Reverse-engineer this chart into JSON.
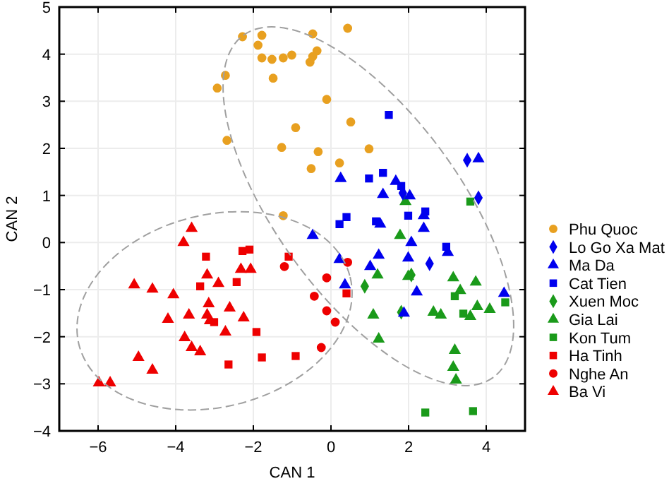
{
  "chart_data": {
    "type": "scatter",
    "xlabel": "CAN 1",
    "ylabel": "CAN 2",
    "xlim": [
      -7,
      5
    ],
    "ylim": [
      -4,
      5
    ],
    "xticks": [
      -6,
      -4,
      -2,
      0,
      2,
      4
    ],
    "yticks": [
      -4,
      -3,
      -2,
      -1,
      0,
      1,
      2,
      3,
      4,
      5
    ],
    "grid": true,
    "legend": "right",
    "series": [
      {
        "name": "Phu Quoc",
        "color": "#e8a020",
        "marker": "circle",
        "x": [
          -2.28,
          -1.78,
          -0.47,
          0.43,
          -1.88,
          -1.78,
          -1.52,
          -1.23,
          -1.01,
          -0.36,
          -0.47,
          -0.54,
          -2.72,
          -2.93,
          -1.49,
          -0.11,
          -0.91,
          0.51,
          -2.68,
          -1.27,
          -0.33,
          0.98,
          -0.51,
          0.22,
          -1.23
        ],
        "values": [
          4.37,
          4.4,
          4.43,
          4.55,
          4.19,
          3.92,
          3.89,
          3.92,
          3.98,
          4.07,
          3.95,
          3.83,
          3.55,
          3.28,
          3.49,
          3.04,
          2.44,
          2.56,
          2.17,
          2.02,
          1.93,
          1.99,
          1.57,
          1.69,
          0.57
        ]
      },
      {
        "name": "Lo Go Xa Mat",
        "color": "#0000ee",
        "marker": "diamond",
        "x": [
          3.51,
          3.8,
          1.85,
          2.54
        ],
        "values": [
          1.75,
          0.95,
          1.05,
          -0.45
        ]
      },
      {
        "name": "Ma Da",
        "color": "#0000ee",
        "marker": "triangle",
        "x": [
          3.8,
          0.25,
          1.67,
          1.34,
          2.03,
          2.39,
          2.39,
          1.27,
          -0.47,
          2.07,
          1.23,
          0.22,
          1.01,
          1.99,
          0.36,
          2.21,
          1.88,
          4.46,
          3.01
        ],
        "values": [
          1.78,
          1.36,
          1.3,
          1.02,
          0.99,
          0.57,
          0.3,
          0.39,
          0.15,
          0,
          -0.27,
          -0.36,
          -0.51,
          -0.33,
          -0.9,
          -1.05,
          -1.5,
          -1.08,
          -0.21
        ]
      },
      {
        "name": "Cat Tien",
        "color": "#0000ee",
        "marker": "square",
        "x": [
          1.49,
          0.98,
          1.34,
          1.81,
          2.43,
          1.99,
          0.4,
          0.22,
          1.16,
          2.97
        ],
        "values": [
          2.71,
          1.36,
          1.48,
          1.2,
          0.66,
          0.57,
          0.54,
          0.39,
          0.45,
          -0.09
        ]
      },
      {
        "name": "Xuen Moc",
        "color": "#1a9a1a",
        "marker": "diamond",
        "x": [
          0.87,
          2.07,
          1.81
        ],
        "values": [
          -0.93,
          -0.69,
          -1.48
        ]
      },
      {
        "name": "Gia Lai",
        "color": "#1a9a1a",
        "marker": "triangle",
        "x": [
          1.92,
          1.78,
          1.2,
          1.99,
          3.15,
          3.33,
          3.73,
          1.09,
          2.64,
          2.83,
          3.59,
          3.77,
          4.09,
          1.23,
          3.19,
          3.15,
          3.22
        ],
        "values": [
          0.87,
          0.15,
          -0.69,
          -0.72,
          -0.75,
          -1.02,
          -0.84,
          -1.54,
          -1.48,
          -1.54,
          -1.57,
          -1.36,
          -1.42,
          -2.05,
          -2.29,
          -2.65,
          -2.92
        ]
      },
      {
        "name": "Kon Tum",
        "color": "#1a9a1a",
        "marker": "square",
        "x": [
          3.59,
          3.19,
          3.41,
          4.49,
          2.43,
          3.66
        ],
        "values": [
          0.87,
          -1.14,
          -1.51,
          -1.27,
          -3.61,
          -3.58
        ]
      },
      {
        "name": "Ha Tinh",
        "color": "#ee0000",
        "marker": "square",
        "x": [
          -3.22,
          -2.28,
          -2.1,
          -1.09,
          -3.37,
          -2.43,
          -3.01,
          -1.92,
          -1.78,
          -0.91,
          -2.64,
          0.4
        ],
        "values": [
          -0.3,
          -0.18,
          -0.15,
          -0.3,
          -0.93,
          -0.84,
          -1.69,
          -1.9,
          -2.44,
          -2.41,
          -2.59,
          -1.08
        ]
      },
      {
        "name": "Nghe An",
        "color": "#ee0000",
        "marker": "circle",
        "x": [
          -1.2,
          -0.11,
          -0.43,
          -0.11,
          0.11,
          -0.25,
          0.43
        ],
        "values": [
          -0.51,
          -0.75,
          -1.14,
          -1.45,
          -1.69,
          -2.23,
          -0.42
        ]
      },
      {
        "name": "Ba Vi",
        "color": "#ee0000",
        "marker": "triangle",
        "x": [
          -3.59,
          -3.8,
          -2.32,
          -2.07,
          -3.19,
          -2.9,
          -5.07,
          -4.6,
          -4.06,
          -3.15,
          -2.61,
          -3.66,
          -3.19,
          -4.2,
          -2.25,
          -3.12,
          -2.72,
          -3.77,
          -3.59,
          -3.37,
          -4.96,
          -4.6,
          -5.98,
          -5.69
        ],
        "values": [
          0.3,
          0,
          -0.57,
          -0.57,
          -0.69,
          -0.87,
          -0.9,
          -0.99,
          -1.11,
          -1.3,
          -1.39,
          -1.54,
          -1.54,
          -1.63,
          -1.6,
          -1.66,
          -1.9,
          -2.02,
          -2.23,
          -2.32,
          -2.44,
          -2.71,
          -2.98,
          -2.98
        ]
      }
    ]
  }
}
